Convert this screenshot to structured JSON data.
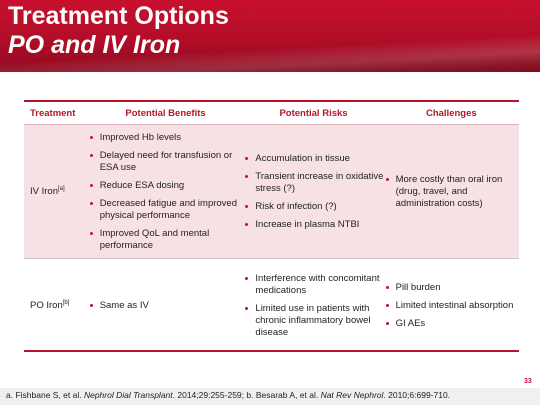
{
  "slide": {
    "title_line1": "Treatment Options",
    "title_line2": "PO and IV Iron",
    "page_number": "33",
    "accent_color": "#c8102e"
  },
  "table": {
    "headers": [
      "Treatment",
      "Potential Benefits",
      "Potential Risks",
      "Challenges"
    ],
    "rows": [
      {
        "treatment": "IV Iron",
        "ref": "[a]",
        "benefits": [
          "Improved Hb levels",
          "Delayed need for transfusion or ESA use",
          "Reduce ESA dosing",
          "Decreased fatigue and improved physical performance",
          "Improved QoL and mental performance"
        ],
        "risks": [
          "Accumulation in tissue",
          "Transient increase in oxidative stress (?)",
          "Risk of infection (?)",
          "Increase in plasma NTBI"
        ],
        "challenges": [
          "More costly than oral iron (drug, travel, and administration costs)"
        ]
      },
      {
        "treatment": "PO Iron",
        "ref": "[b]",
        "benefits": [
          "Same as IV"
        ],
        "risks": [
          "Interference with concomitant medications",
          "Limited use in patients with chronic inflammatory bowel disease"
        ],
        "challenges": [
          "Pill burden",
          "Limited intestinal absorption",
          "GI AEs"
        ]
      }
    ]
  },
  "footnote": {
    "a_prefix": "a. Fishbane S, et al. ",
    "a_journal": "Nephrol Dial Transplant",
    "a_suffix": ". 2014;29:255-259; b. Besarab A, et al. ",
    "b_journal": "Nat Rev Nephrol",
    "b_suffix": ". 2010;6:699-710."
  }
}
